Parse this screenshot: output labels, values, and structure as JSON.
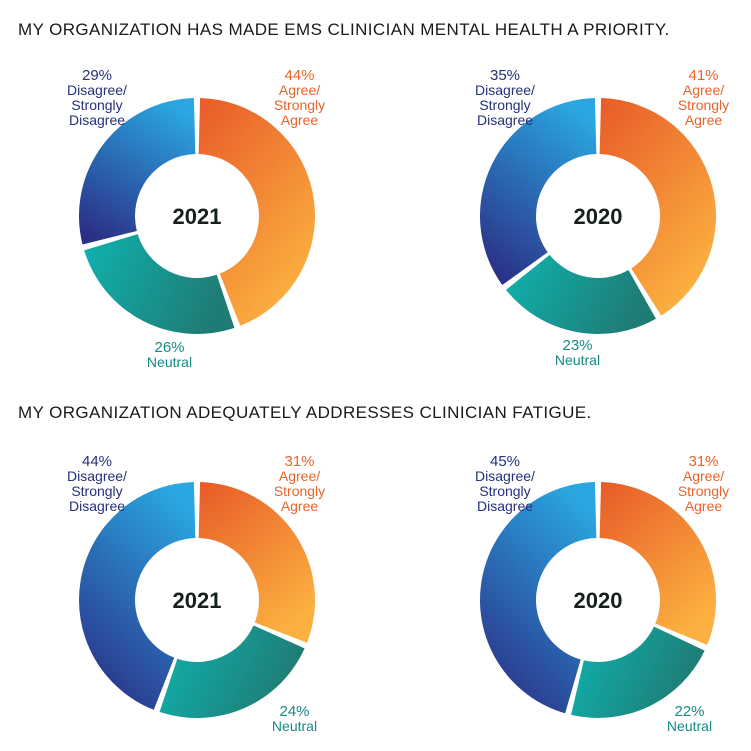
{
  "chart_data": [
    {
      "type": "pie",
      "title": "MY ORGANIZATION HAS MADE EMS CLINICIAN MENTAL HEALTH A PRIORITY.",
      "year": "2021",
      "slices": [
        {
          "name": "Agree/Strongly Agree",
          "value": 44,
          "pct_label": "44%",
          "label_lines": [
            "Agree/",
            "Strongly",
            "Agree"
          ]
        },
        {
          "name": "Neutral",
          "value": 26,
          "pct_label": "26%",
          "label_lines": [
            "Neutral"
          ]
        },
        {
          "name": "Disagree/Strongly Disagree",
          "value": 29,
          "pct_label": "29%",
          "label_lines": [
            "Disagree/",
            "Strongly",
            "Disagree"
          ]
        }
      ]
    },
    {
      "type": "pie",
      "title": "MY ORGANIZATION HAS MADE EMS CLINICIAN MENTAL HEALTH A PRIORITY.",
      "year": "2020",
      "slices": [
        {
          "name": "Agree/Strongly Agree",
          "value": 41,
          "pct_label": "41%",
          "label_lines": [
            "Agree/",
            "Strongly",
            "Agree"
          ]
        },
        {
          "name": "Neutral",
          "value": 23,
          "pct_label": "23%",
          "label_lines": [
            "Neutral"
          ]
        },
        {
          "name": "Disagree/Strongly Disagree",
          "value": 35,
          "pct_label": "35%",
          "label_lines": [
            "Disagree/",
            "Strongly",
            "Disagree"
          ]
        }
      ]
    },
    {
      "type": "pie",
      "title": "MY ORGANIZATION ADEQUATELY ADDRESSES CLINICIAN FATIGUE.",
      "year": "2021",
      "slices": [
        {
          "name": "Agree/Strongly Agree",
          "value": 31,
          "pct_label": "31%",
          "label_lines": [
            "Agree/",
            "Strongly",
            "Agree"
          ]
        },
        {
          "name": "Neutral",
          "value": 24,
          "pct_label": "24%",
          "label_lines": [
            "Neutral"
          ]
        },
        {
          "name": "Disagree/Strongly Disagree",
          "value": 44,
          "pct_label": "44%",
          "label_lines": [
            "Disagree/",
            "Strongly",
            "Disagree"
          ]
        }
      ]
    },
    {
      "type": "pie",
      "title": "MY ORGANIZATION ADEQUATELY ADDRESSES CLINICIAN FATIGUE.",
      "year": "2020",
      "slices": [
        {
          "name": "Agree/Strongly Agree",
          "value": 31,
          "pct_label": "31%",
          "label_lines": [
            "Agree/",
            "Strongly",
            "Agree"
          ]
        },
        {
          "name": "Neutral",
          "value": 22,
          "pct_label": "22%",
          "label_lines": [
            "Neutral"
          ]
        },
        {
          "name": "Disagree/Strongly Disagree",
          "value": 45,
          "pct_label": "45%",
          "label_lines": [
            "Disagree/",
            "Strongly",
            "Disagree"
          ]
        }
      ]
    }
  ],
  "colors": {
    "agree_start": "#e85a28",
    "agree_end": "#fbb040",
    "neutral_start": "#0fb3b0",
    "neutral_end": "#1f7c75",
    "disagree_start": "#2aa6e0",
    "disagree_end": "#2b2f86",
    "disagree_text": "#25307a",
    "agree_text": "#e7642a",
    "neutral_text": "#138a85",
    "year_text": "#14201c"
  }
}
